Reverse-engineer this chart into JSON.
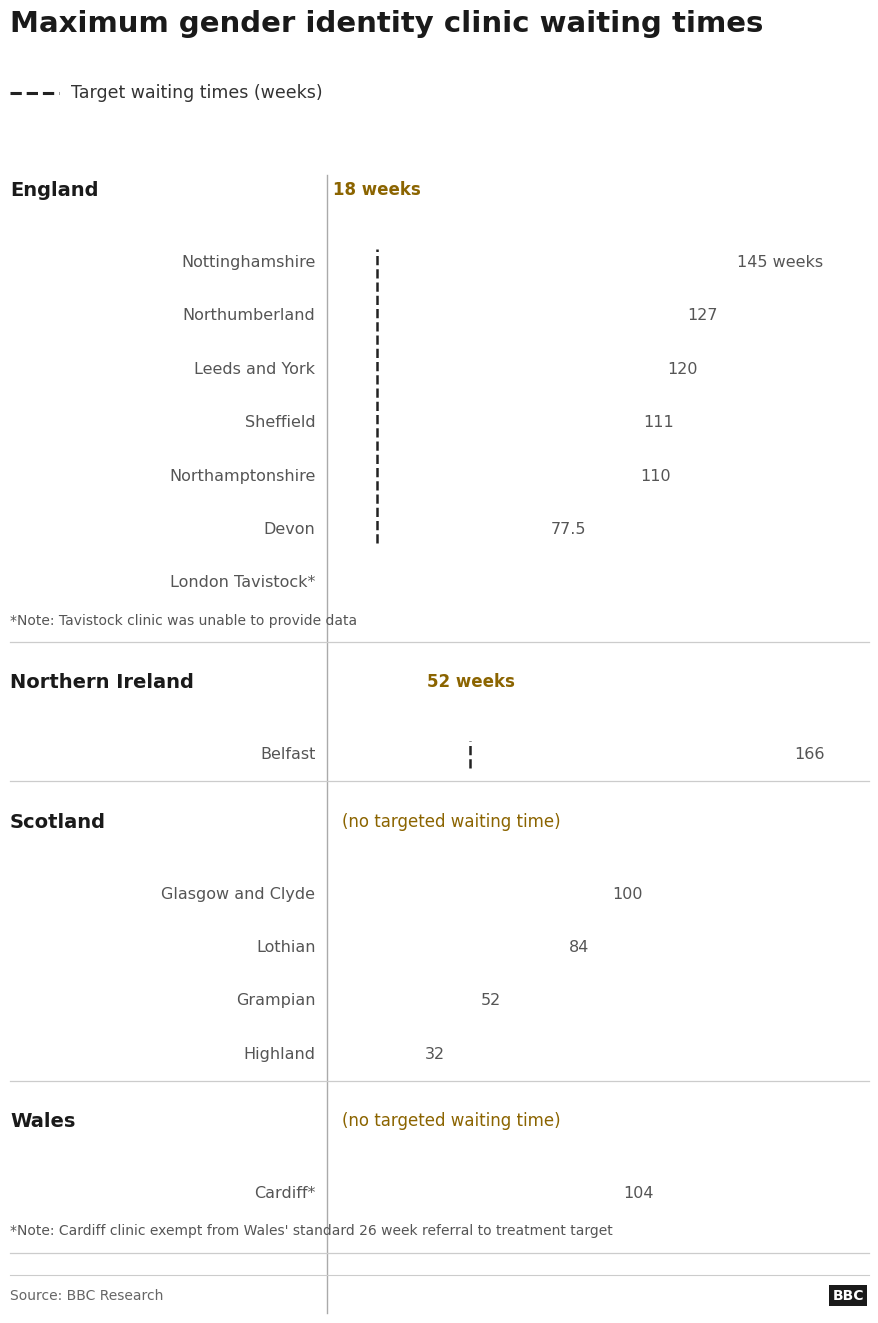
{
  "title": "Maximum gender identity clinic waiting times",
  "legend_label": "Target waiting times (weeks)",
  "bar_color": "#FFB300",
  "background_color": "#FFFFFF",
  "sections": [
    {
      "region": "England",
      "target_weeks": 18,
      "target_label": "18 weeks",
      "bars": [
        {
          "label": "Nottinghamshire",
          "value": 145,
          "display": "145 weeks"
        },
        {
          "label": "Northumberland",
          "value": 127,
          "display": "127"
        },
        {
          "label": "Leeds and York",
          "value": 120,
          "display": "120"
        },
        {
          "label": "Sheffield",
          "value": 111,
          "display": "111"
        },
        {
          "label": "Northamptonshire",
          "value": 110,
          "display": "110"
        },
        {
          "label": "Devon",
          "value": 77.5,
          "display": "77.5"
        },
        {
          "label": "London Tavistock*",
          "value": null,
          "display": null
        }
      ],
      "footnote": "*Note: Tavistock clinic was unable to provide data"
    },
    {
      "region": "Northern Ireland",
      "target_weeks": 52,
      "target_label": "52 weeks",
      "bars": [
        {
          "label": "Belfast",
          "value": 166,
          "display": "166"
        }
      ],
      "footnote": null
    },
    {
      "region": "Scotland",
      "target_weeks": null,
      "target_label": "(no targeted waiting time)",
      "bars": [
        {
          "label": "Glasgow and Clyde",
          "value": 100,
          "display": "100"
        },
        {
          "label": "Lothian",
          "value": 84,
          "display": "84"
        },
        {
          "label": "Grampian",
          "value": 52,
          "display": "52"
        },
        {
          "label": "Highland",
          "value": 32,
          "display": "32"
        }
      ],
      "footnote": null
    },
    {
      "region": "Wales",
      "target_weeks": null,
      "target_label": "(no targeted waiting time)",
      "bars": [
        {
          "label": "Cardiff*",
          "value": 104,
          "display": "104"
        }
      ],
      "footnote": "*Note: Cardiff clinic exempt from Wales' standard 26 week referral to treatment target"
    }
  ],
  "source": "Source: BBC Research",
  "max_value": 170,
  "title_color": "#1a1a1a",
  "region_color": "#1a1a1a",
  "target_color": "#8B6400",
  "label_color": "#555555",
  "value_color": "#555555",
  "dashed_line_color": "#222222",
  "divider_color": "#cccccc",
  "footnote_color": "#555555",
  "source_color": "#666666"
}
